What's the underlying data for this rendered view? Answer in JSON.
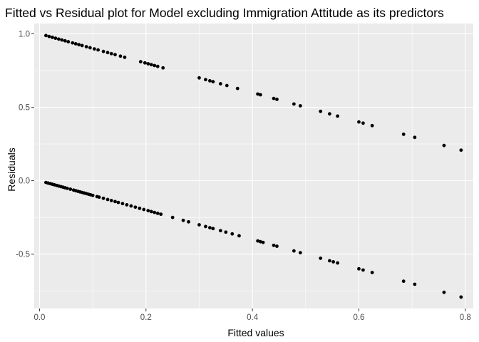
{
  "chart_data": {
    "type": "scatter",
    "title": "Fitted vs Residual plot for Model excluding Immigration Attitude as its predictors",
    "xlabel": "Fitted values",
    "ylabel": "Residuals",
    "xlim": [
      -0.01,
      0.815
    ],
    "ylim": [
      -0.87,
      1.07
    ],
    "x_ticks": [
      0.0,
      0.2,
      0.4,
      0.6,
      0.8
    ],
    "x_tick_labels": [
      "0.0",
      "0.2",
      "0.4",
      "0.6",
      "0.8"
    ],
    "y_ticks": [
      -0.5,
      0.0,
      0.5,
      1.0
    ],
    "y_tick_labels": [
      "-0.5",
      "0.0",
      "0.5",
      "1.0"
    ],
    "grid": true,
    "legend": "none",
    "colors": {
      "panel": "#ebebeb",
      "grid": "#ffffff",
      "point": "#000000",
      "tick": "#333333"
    },
    "series": [
      {
        "x": [
          0.012,
          0.018,
          0.024,
          0.03,
          0.036,
          0.042,
          0.048,
          0.054,
          0.062,
          0.068,
          0.074,
          0.08,
          0.088,
          0.095,
          0.103,
          0.11,
          0.12,
          0.128,
          0.135,
          0.142,
          0.152,
          0.16,
          0.19,
          0.198,
          0.204,
          0.21,
          0.216,
          0.222,
          0.232,
          0.3,
          0.312,
          0.32,
          0.326,
          0.34,
          0.352,
          0.372,
          0.41,
          0.415,
          0.44,
          0.446,
          0.478,
          0.49,
          0.528,
          0.545,
          0.56,
          0.6,
          0.608,
          0.625,
          0.684,
          0.705,
          0.76,
          0.792
        ],
        "y": [
          0.988,
          0.982,
          0.976,
          0.97,
          0.964,
          0.958,
          0.952,
          0.946,
          0.938,
          0.932,
          0.926,
          0.92,
          0.912,
          0.905,
          0.897,
          0.89,
          0.88,
          0.872,
          0.865,
          0.858,
          0.848,
          0.84,
          0.81,
          0.802,
          0.796,
          0.79,
          0.784,
          0.778,
          0.768,
          0.7,
          0.688,
          0.68,
          0.674,
          0.66,
          0.648,
          0.628,
          0.59,
          0.585,
          0.56,
          0.554,
          0.522,
          0.51,
          0.472,
          0.455,
          0.44,
          0.4,
          0.392,
          0.375,
          0.316,
          0.295,
          0.24,
          0.208
        ]
      },
      {
        "x": [
          0.012,
          0.016,
          0.02,
          0.024,
          0.028,
          0.032,
          0.036,
          0.04,
          0.044,
          0.048,
          0.052,
          0.058,
          0.064,
          0.068,
          0.072,
          0.076,
          0.08,
          0.084,
          0.088,
          0.092,
          0.096,
          0.1,
          0.108,
          0.112,
          0.12,
          0.128,
          0.135,
          0.142,
          0.148,
          0.156,
          0.164,
          0.172,
          0.18,
          0.188,
          0.196,
          0.204,
          0.21,
          0.216,
          0.222,
          0.228,
          0.25,
          0.27,
          0.28,
          0.3,
          0.312,
          0.32,
          0.326,
          0.34,
          0.35,
          0.362,
          0.375,
          0.41,
          0.415,
          0.42,
          0.44,
          0.446,
          0.478,
          0.49,
          0.528,
          0.545,
          0.552,
          0.56,
          0.6,
          0.608,
          0.625,
          0.684,
          0.705,
          0.76,
          0.792
        ],
        "y": [
          -0.012,
          -0.016,
          -0.02,
          -0.024,
          -0.028,
          -0.032,
          -0.036,
          -0.04,
          -0.044,
          -0.048,
          -0.052,
          -0.058,
          -0.064,
          -0.068,
          -0.072,
          -0.076,
          -0.08,
          -0.084,
          -0.088,
          -0.092,
          -0.096,
          -0.1,
          -0.108,
          -0.112,
          -0.12,
          -0.128,
          -0.135,
          -0.142,
          -0.148,
          -0.156,
          -0.164,
          -0.172,
          -0.18,
          -0.188,
          -0.196,
          -0.204,
          -0.21,
          -0.216,
          -0.222,
          -0.228,
          -0.25,
          -0.27,
          -0.28,
          -0.3,
          -0.312,
          -0.32,
          -0.326,
          -0.34,
          -0.35,
          -0.362,
          -0.375,
          -0.41,
          -0.415,
          -0.42,
          -0.44,
          -0.446,
          -0.478,
          -0.49,
          -0.528,
          -0.545,
          -0.552,
          -0.56,
          -0.6,
          -0.608,
          -0.625,
          -0.684,
          -0.705,
          -0.76,
          -0.792
        ]
      }
    ]
  }
}
